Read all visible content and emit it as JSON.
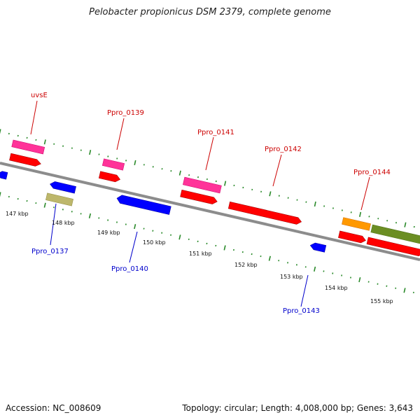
{
  "title": "Pelobacter propionicus DSM 2379, complete genome",
  "footer": {
    "accession": "Accession: NC_008609",
    "summary": "Topology: circular; Length: 4,008,000 bp; Genes: 3,643"
  },
  "colors": {
    "backbone": "#8c8c8c",
    "forward_cds": "#ff0000",
    "reverse_cds": "#0000ff",
    "gene_feature": "#ff3399",
    "other_feature": "#bdb76b",
    "orange_feature": "#ff9900",
    "olive_feature": "#6b8e23",
    "forward_label": "#cc0000",
    "reverse_label": "#0000cc",
    "tick_forward": "#2a8a2a"
  },
  "scale": {
    "labels": [
      "147 kbp",
      "148 kbp",
      "149 kbp",
      "150 kbp",
      "151 kbp",
      "152 kbp",
      "153 kbp",
      "154 kbp",
      "155 kbp"
    ]
  },
  "forward_genes": [
    "uvsE",
    "Ppro_0139",
    "Ppro_0141",
    "Ppro_0142",
    "Ppro_0144"
  ],
  "reverse_genes": [
    "Ppro_0137",
    "Ppro_0140",
    "Ppro_0143"
  ]
}
